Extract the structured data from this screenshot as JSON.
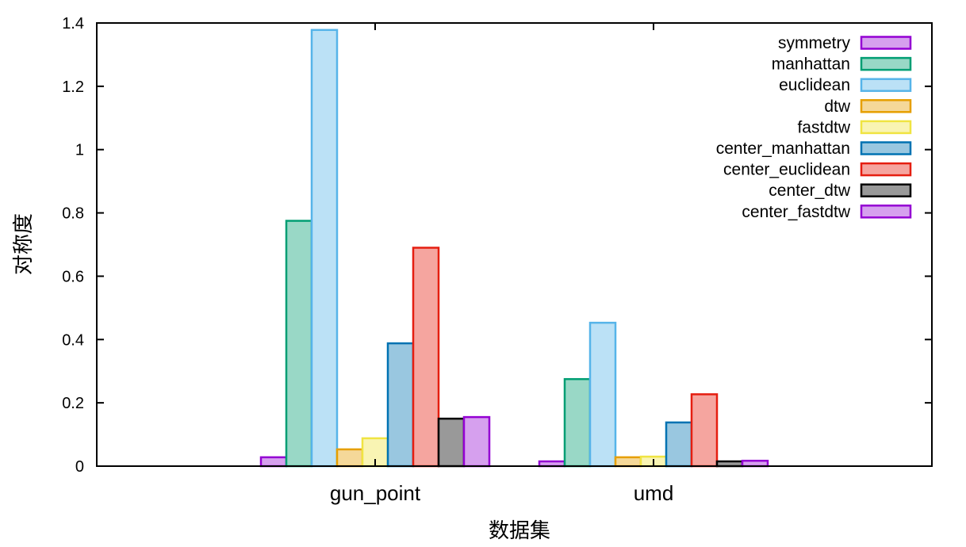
{
  "chart_data": {
    "type": "bar",
    "title": "",
    "xlabel": "数据集",
    "ylabel": "对称度",
    "ylim": [
      0,
      1.4
    ],
    "yticks": [
      "0",
      "0.2",
      "0.4",
      "0.6",
      "0.8",
      "1",
      "1.2",
      "1.4"
    ],
    "categories": [
      "gun_point",
      "umd"
    ],
    "legend": {
      "placement": "top-right"
    },
    "grid": false,
    "series": [
      {
        "name": "symmetry",
        "values": [
          0.028,
          0.015
        ],
        "color": "#9400d3",
        "fill": "#d6a0ee"
      },
      {
        "name": "manhattan",
        "values": [
          0.775,
          0.275
        ],
        "color": "#009e73",
        "fill": "#99d8c6"
      },
      {
        "name": "euclidean",
        "values": [
          1.378,
          0.453
        ],
        "color": "#56b4e9",
        "fill": "#bbe1f6"
      },
      {
        "name": "dtw",
        "values": [
          0.053,
          0.028
        ],
        "color": "#e69f00",
        "fill": "#f5d899"
      },
      {
        "name": "fastdtw",
        "values": [
          0.088,
          0.03
        ],
        "color": "#f0e442",
        "fill": "#f9f4b3"
      },
      {
        "name": "center_manhattan",
        "values": [
          0.388,
          0.138
        ],
        "color": "#0072b2",
        "fill": "#99c7e0"
      },
      {
        "name": "center_euclidean",
        "values": [
          0.69,
          0.227
        ],
        "color": "#e51e10",
        "fill": "#f5a59f"
      },
      {
        "name": "center_dtw",
        "values": [
          0.15,
          0.015
        ],
        "color": "#000000",
        "fill": "#999999"
      },
      {
        "name": "center_fastdtw",
        "values": [
          0.155,
          0.017
        ],
        "color": "#9400d3",
        "fill": "#d6a0ee"
      }
    ]
  }
}
